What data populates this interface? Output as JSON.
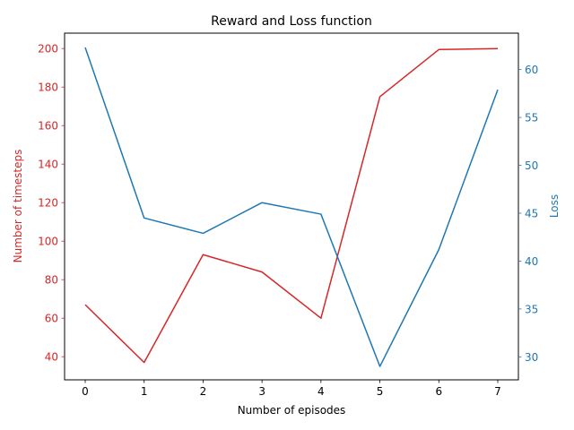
{
  "chart_data": {
    "type": "line",
    "title": "Reward and Loss function",
    "xlabel": "Number of episodes",
    "ylabel_left": "Number of timesteps",
    "ylabel_right": "Loss",
    "x": [
      0,
      1,
      2,
      3,
      4,
      5,
      6,
      7
    ],
    "xlim": [
      -0.35,
      7.35
    ],
    "xticks": [
      "0",
      "1",
      "2",
      "3",
      "4",
      "5",
      "6",
      "7"
    ],
    "ylim_left": [
      28,
      208
    ],
    "yticks_left": [
      "40",
      "60",
      "80",
      "100",
      "120",
      "140",
      "160",
      "180",
      "200"
    ],
    "ylim_right": [
      27.6,
      63.8
    ],
    "yticks_right": [
      "30",
      "35",
      "40",
      "45",
      "50",
      "55",
      "60"
    ],
    "left_color": "#d62728",
    "right_color": "#1f77b4",
    "grid": false,
    "series": [
      {
        "axis": "left",
        "color": "#d62728",
        "values": [
          67,
          37,
          93,
          84,
          60,
          175,
          199.5,
          200
        ]
      },
      {
        "axis": "right",
        "color": "#1f77b4",
        "values": [
          62.3,
          44.5,
          42.9,
          46.1,
          44.9,
          29.0,
          41.2,
          57.9
        ]
      }
    ]
  }
}
